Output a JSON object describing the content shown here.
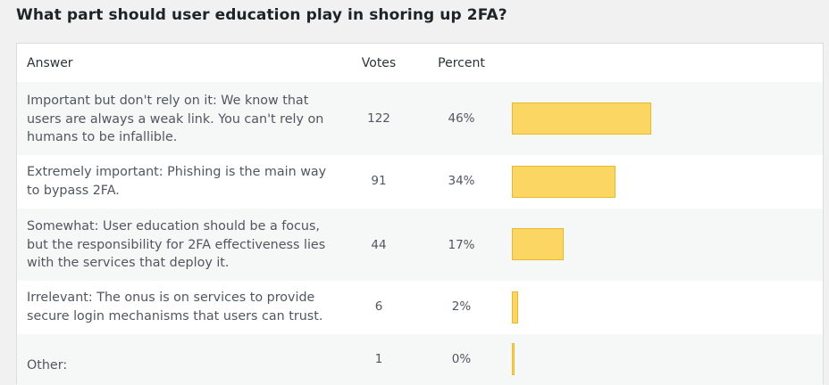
{
  "title": "What part should user education play in shoring up 2FA?",
  "columns": {
    "answer": "Answer",
    "votes": "Votes",
    "percent": "Percent"
  },
  "colors": {
    "bar_fill": "#fcd662",
    "bar_border": "#e8b92b"
  },
  "rows": [
    {
      "answer": "Important but don't rely on it: We know that users are always a weak link. You can't rely on humans to be infallible.",
      "votes": "122",
      "percent": "46%",
      "fraction": 0.46
    },
    {
      "answer": "Extremely important: Phishing is the main way to bypass 2FA.",
      "votes": "91",
      "percent": "34%",
      "fraction": 0.34
    },
    {
      "answer": "Somewhat: User education should be a focus, but the responsibility for 2FA effectiveness lies with the services that deploy it.",
      "votes": "44",
      "percent": "17%",
      "fraction": 0.17
    },
    {
      "answer": "Irrelevant: The onus is on services to provide secure login mechanisms that users can trust.",
      "votes": "6",
      "percent": "2%",
      "fraction": 0.02
    },
    {
      "answer": "Other:",
      "votes": "1",
      "percent": "0%",
      "fraction": 0.004
    }
  ]
}
